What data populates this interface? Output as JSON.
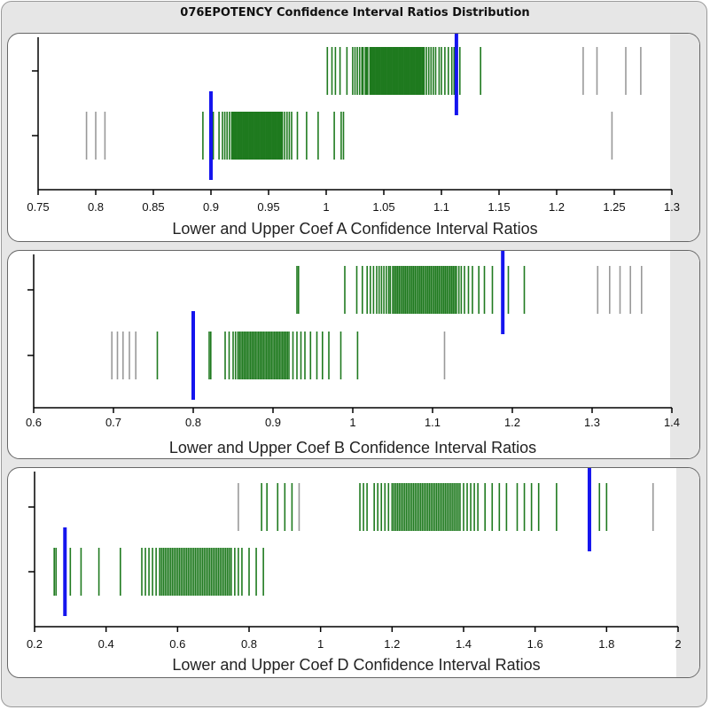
{
  "title": "076EPOTENCY Confidence Interval Ratios Distribution",
  "colors": {
    "in_range": "#1f7a1f",
    "outlier": "#999999",
    "marker": "#1515ee",
    "axis": "#000000"
  },
  "chart_data": [
    {
      "type": "strip",
      "xlabel": "Lower and Upper Coef A Confidence Interval Ratios",
      "xlim": [
        0.75,
        1.3
      ],
      "ticks": [
        0.75,
        0.8,
        0.85,
        0.9,
        0.95,
        1,
        1.05,
        1.1,
        1.15,
        1.2,
        1.25,
        1.3
      ],
      "tick_labels": [
        "0.75",
        "0.8",
        "0.85",
        "0.9",
        "0.95",
        "1",
        "1.05",
        "1.1",
        "1.15",
        "1.2",
        "1.25",
        "1.3"
      ],
      "grid": false,
      "rows": [
        {
          "range": [
            1.0,
            1.135
          ],
          "limit": 1.113,
          "outliers": [
            1.223,
            1.235,
            1.26,
            1.273
          ],
          "marks": [
            1.001,
            1.005,
            1.008,
            1.012,
            1.018,
            1.023,
            1.025,
            1.027,
            1.029,
            1.031,
            1.032,
            1.034,
            1.035,
            1.036,
            1.038,
            1.039,
            1.04,
            1.041,
            1.042,
            1.043,
            1.044,
            1.045,
            1.046,
            1.047,
            1.048,
            1.049,
            1.05,
            1.051,
            1.052,
            1.053,
            1.054,
            1.055,
            1.056,
            1.057,
            1.058,
            1.059,
            1.06,
            1.061,
            1.062,
            1.063,
            1.064,
            1.065,
            1.066,
            1.067,
            1.068,
            1.069,
            1.07,
            1.071,
            1.072,
            1.073,
            1.074,
            1.075,
            1.076,
            1.077,
            1.078,
            1.079,
            1.08,
            1.081,
            1.082,
            1.083,
            1.084,
            1.085,
            1.087,
            1.089,
            1.091,
            1.093,
            1.095,
            1.098,
            1.1,
            1.103,
            1.106,
            1.109,
            1.111,
            1.116,
            1.134
          ]
        },
        {
          "range": [
            0.893,
            1.015
          ],
          "limit": 0.9,
          "outliers": [
            0.792,
            0.8,
            0.808,
            1.248
          ],
          "marks": [
            0.893,
            0.902,
            0.907,
            0.91,
            0.912,
            0.914,
            0.916,
            0.918,
            0.919,
            0.92,
            0.921,
            0.922,
            0.923,
            0.924,
            0.925,
            0.926,
            0.927,
            0.928,
            0.929,
            0.93,
            0.931,
            0.932,
            0.933,
            0.934,
            0.935,
            0.936,
            0.937,
            0.938,
            0.939,
            0.94,
            0.941,
            0.942,
            0.943,
            0.944,
            0.945,
            0.946,
            0.947,
            0.948,
            0.949,
            0.95,
            0.951,
            0.952,
            0.953,
            0.954,
            0.955,
            0.956,
            0.957,
            0.958,
            0.959,
            0.96,
            0.961,
            0.962,
            0.964,
            0.966,
            0.968,
            0.97,
            0.975,
            0.983,
            0.993,
            1.007,
            1.013,
            1.015
          ]
        }
      ]
    },
    {
      "type": "strip",
      "xlabel": "Lower and Upper Coef B Confidence Interval Ratios",
      "xlim": [
        0.6,
        1.4
      ],
      "ticks": [
        0.6,
        0.7,
        0.8,
        0.9,
        1,
        1.1,
        1.2,
        1.3,
        1.4
      ],
      "tick_labels": [
        "0.6",
        "0.7",
        "0.8",
        "0.9",
        "1",
        "1.1",
        "1.2",
        "1.3",
        "1.4"
      ],
      "grid": false,
      "rows": [
        {
          "range": [
            0.93,
            1.215
          ],
          "limit": 1.188,
          "outliers": [
            1.307,
            1.322,
            1.335,
            1.348,
            1.362
          ],
          "marks": [
            0.93,
            0.932,
            0.99,
            1.005,
            1.012,
            1.018,
            1.022,
            1.026,
            1.03,
            1.033,
            1.036,
            1.039,
            1.042,
            1.045,
            1.047,
            1.05,
            1.052,
            1.054,
            1.056,
            1.058,
            1.06,
            1.062,
            1.064,
            1.066,
            1.068,
            1.07,
            1.072,
            1.074,
            1.076,
            1.078,
            1.08,
            1.082,
            1.084,
            1.086,
            1.088,
            1.09,
            1.092,
            1.094,
            1.096,
            1.098,
            1.1,
            1.102,
            1.104,
            1.106,
            1.108,
            1.11,
            1.112,
            1.114,
            1.116,
            1.118,
            1.12,
            1.122,
            1.124,
            1.126,
            1.128,
            1.13,
            1.133,
            1.136,
            1.14,
            1.145,
            1.15,
            1.158,
            1.165,
            1.175,
            1.195,
            1.215
          ]
        },
        {
          "range": [
            0.755,
            1.006
          ],
          "limit": 0.8,
          "outliers": [
            0.698,
            0.705,
            0.712,
            0.72,
            0.728,
            1.115
          ],
          "marks": [
            0.755,
            0.82,
            0.822,
            0.84,
            0.845,
            0.85,
            0.853,
            0.856,
            0.858,
            0.86,
            0.862,
            0.864,
            0.866,
            0.868,
            0.87,
            0.872,
            0.874,
            0.876,
            0.878,
            0.88,
            0.882,
            0.884,
            0.886,
            0.888,
            0.89,
            0.892,
            0.894,
            0.896,
            0.898,
            0.9,
            0.902,
            0.904,
            0.906,
            0.908,
            0.91,
            0.912,
            0.914,
            0.916,
            0.918,
            0.92,
            0.925,
            0.93,
            0.935,
            0.94,
            0.947,
            0.955,
            0.962,
            0.97,
            0.985,
            1.006
          ]
        }
      ]
    },
    {
      "type": "strip",
      "xlabel": "Lower and Upper Coef D Confidence Interval Ratios",
      "xlim": [
        0.2,
        2.0
      ],
      "ticks": [
        0.2,
        0.4,
        0.6,
        0.8,
        1,
        1.2,
        1.4,
        1.6,
        1.8,
        2
      ],
      "tick_labels": [
        "0.2",
        "0.4",
        "0.6",
        "0.8",
        "1",
        "1.2",
        "1.4",
        "1.6",
        "1.8",
        "2"
      ],
      "grid": false,
      "rows": [
        {
          "range": [
            0.835,
            1.8
          ],
          "limit": 1.752,
          "outliers": [
            0.77,
            0.94,
            1.93
          ],
          "marks": [
            0.835,
            0.85,
            0.88,
            0.9,
            0.92,
            1.11,
            1.12,
            1.13,
            1.15,
            1.16,
            1.17,
            1.18,
            1.19,
            1.2,
            1.205,
            1.21,
            1.215,
            1.22,
            1.225,
            1.23,
            1.235,
            1.24,
            1.245,
            1.25,
            1.255,
            1.26,
            1.265,
            1.27,
            1.275,
            1.28,
            1.285,
            1.29,
            1.295,
            1.3,
            1.305,
            1.31,
            1.315,
            1.32,
            1.325,
            1.33,
            1.335,
            1.34,
            1.345,
            1.35,
            1.355,
            1.36,
            1.365,
            1.37,
            1.375,
            1.38,
            1.385,
            1.39,
            1.4,
            1.41,
            1.42,
            1.43,
            1.44,
            1.46,
            1.48,
            1.5,
            1.52,
            1.55,
            1.57,
            1.59,
            1.61,
            1.66,
            1.78,
            1.8
          ]
        },
        {
          "range": [
            0.255,
            0.84
          ],
          "limit": 0.285,
          "outliers": [],
          "marks": [
            0.255,
            0.26,
            0.3,
            0.33,
            0.38,
            0.44,
            0.5,
            0.51,
            0.52,
            0.53,
            0.54,
            0.55,
            0.555,
            0.56,
            0.565,
            0.57,
            0.575,
            0.58,
            0.585,
            0.59,
            0.595,
            0.6,
            0.605,
            0.61,
            0.615,
            0.62,
            0.625,
            0.63,
            0.635,
            0.64,
            0.645,
            0.65,
            0.655,
            0.66,
            0.665,
            0.67,
            0.675,
            0.68,
            0.685,
            0.69,
            0.695,
            0.7,
            0.705,
            0.71,
            0.715,
            0.72,
            0.725,
            0.73,
            0.735,
            0.74,
            0.745,
            0.75,
            0.76,
            0.77,
            0.78,
            0.8,
            0.82,
            0.84
          ]
        }
      ]
    }
  ]
}
